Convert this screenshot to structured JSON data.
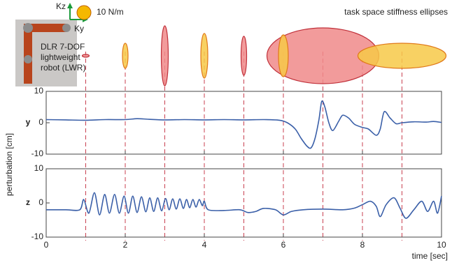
{
  "chart_data": [
    {
      "type": "ellipses",
      "title": "task space stiffness ellipses",
      "robot_label": [
        "DLR 7-DOF",
        "lightweight",
        "robot (LWR)"
      ],
      "kz_label": "Kz",
      "ky_label": "Ky",
      "reference": {
        "value": 10,
        "label": "10 N/m"
      },
      "reference_color": "#f5b800",
      "xlim": [
        0,
        10
      ],
      "markers": [
        1,
        2,
        3,
        4,
        5,
        6,
        7,
        8,
        9
      ],
      "marker_color": "#c84050",
      "series": [
        {
          "color": "#f08a8a",
          "stroke": "#c0303a",
          "x": [
            1,
            3,
            5,
            7
          ],
          "ky": [
            5,
            5,
            4,
            80
          ],
          "kz": [
            2,
            43,
            28,
            40
          ]
        },
        {
          "color": "#f7c948",
          "stroke": "#e07818",
          "x": [
            2,
            4,
            6,
            9
          ],
          "ky": [
            4,
            5,
            7,
            63
          ],
          "kz": [
            18,
            32,
            30,
            18
          ]
        }
      ]
    },
    {
      "type": "line",
      "label": "y",
      "ylabel": "perturbation [cm]",
      "xlim": [
        0,
        10
      ],
      "xticks": [
        0,
        2,
        4,
        6,
        8,
        10
      ],
      "ylim": [
        -10,
        10
      ],
      "yticks": [
        -10,
        0,
        10
      ],
      "x": [
        0,
        0.5,
        1,
        1.5,
        2,
        2.3,
        2.6,
        3,
        3.5,
        4,
        4.5,
        5,
        5.5,
        5.9,
        6.1,
        6.3,
        6.45,
        6.6,
        6.7,
        6.8,
        6.9,
        6.97,
        7.05,
        7.15,
        7.25,
        7.4,
        7.5,
        7.65,
        7.8,
        8.0,
        8.15,
        8.35,
        8.45,
        8.55,
        8.7,
        8.85,
        9.0,
        9.3,
        9.6,
        9.8,
        10
      ],
      "series": [
        {
          "color": "#3a5fa8",
          "values": [
            1,
            0.9,
            0.8,
            1,
            1,
            1.3,
            1.1,
            0.9,
            1,
            0.9,
            1,
            0.9,
            1,
            0.8,
            0,
            -2,
            -5,
            -7.5,
            -8,
            -5,
            1,
            6.8,
            5,
            0,
            -2.5,
            0.5,
            2.4,
            1.5,
            -0.5,
            -1.5,
            -2,
            -4,
            -2,
            3.5,
            1.5,
            -0.3,
            0,
            0.3,
            0.2,
            0.4,
            0.1
          ]
        }
      ]
    },
    {
      "type": "line",
      "label": "z",
      "xlabel": "time [sec]",
      "xlim": [
        0,
        10
      ],
      "xticks": [
        0,
        2,
        4,
        6,
        8,
        10
      ],
      "ylim": [
        -10,
        10
      ],
      "yticks": [
        -10,
        0,
        10
      ],
      "x": [
        0,
        0.5,
        0.85,
        0.95,
        1.08,
        1.22,
        1.35,
        1.48,
        1.6,
        1.73,
        1.85,
        1.97,
        2.08,
        2.19,
        2.3,
        2.41,
        2.52,
        2.62,
        2.72,
        2.82,
        2.92,
        3.02,
        3.11,
        3.2,
        3.29,
        3.38,
        3.47,
        3.55,
        3.63,
        3.71,
        3.79,
        3.87,
        3.95,
        4.0,
        4.1,
        4.5,
        4.9,
        5.1,
        5.3,
        5.5,
        5.8,
        6.0,
        6.2,
        6.5,
        7,
        7.5,
        7.8,
        8.0,
        8.2,
        8.35,
        8.45,
        8.6,
        8.8,
        8.95,
        9.1,
        9.3,
        9.5,
        9.65,
        9.8,
        9.9,
        10
      ],
      "series": [
        {
          "color": "#3a5fa8",
          "values": [
            -2,
            -2,
            -2,
            1,
            -3,
            3,
            -3.5,
            2.5,
            -3,
            2.5,
            -3,
            2,
            -3,
            2,
            -2.8,
            1.8,
            -2.6,
            1.5,
            -2.5,
            1.5,
            -2.3,
            1.3,
            -2,
            1.2,
            -1.8,
            1.2,
            -1.6,
            1,
            -1.4,
            1,
            -1.2,
            1,
            -0.8,
            0.5,
            -2,
            -2.2,
            -2,
            -2.8,
            -2.5,
            -1.6,
            -2,
            -3.5,
            -2.5,
            -2,
            -1.8,
            -2,
            -1.5,
            -0.5,
            0.5,
            -1,
            -4,
            -0.5,
            1.5,
            -1.5,
            -4.5,
            -2,
            0.5,
            -2.5,
            0.5,
            -3,
            2
          ]
        }
      ]
    }
  ]
}
